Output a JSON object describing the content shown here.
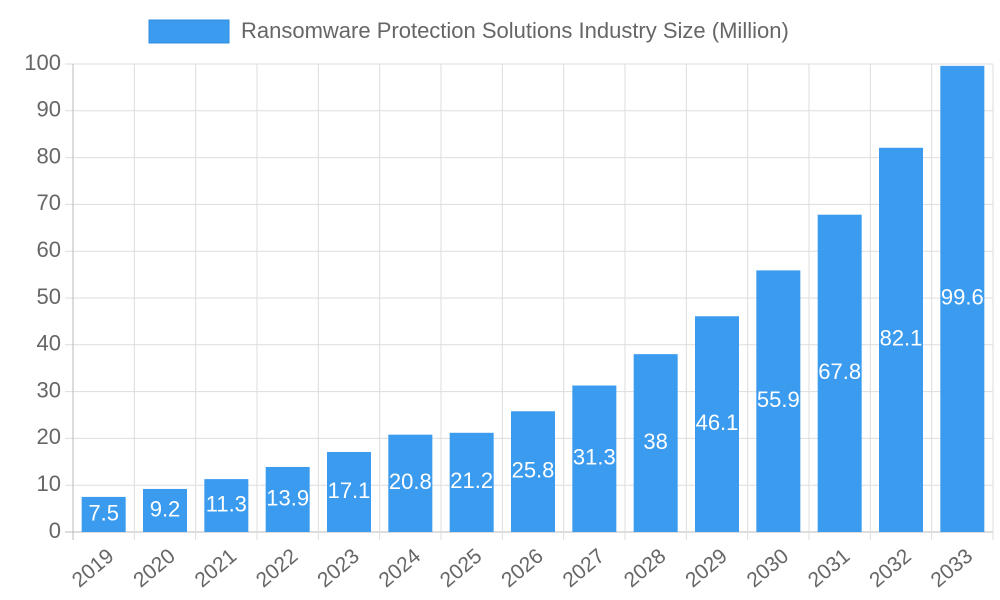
{
  "chart_data": {
    "type": "bar",
    "legend": "Ransomware Protection Solutions Industry Size (Million)",
    "categories": [
      "2019",
      "2020",
      "2021",
      "2022",
      "2023",
      "2024",
      "2025",
      "2026",
      "2027",
      "2028",
      "2029",
      "2030",
      "2031",
      "2032",
      "2033"
    ],
    "values": [
      7.5,
      9.2,
      11.3,
      13.9,
      17.1,
      20.8,
      21.2,
      25.8,
      31.3,
      38,
      46.1,
      55.9,
      67.8,
      82.1,
      99.6
    ],
    "color": "#3a9bef",
    "ylim": [
      0,
      100
    ],
    "yticks": [
      0,
      10,
      20,
      30,
      40,
      50,
      60,
      70,
      80,
      90,
      100
    ],
    "grid": true
  }
}
